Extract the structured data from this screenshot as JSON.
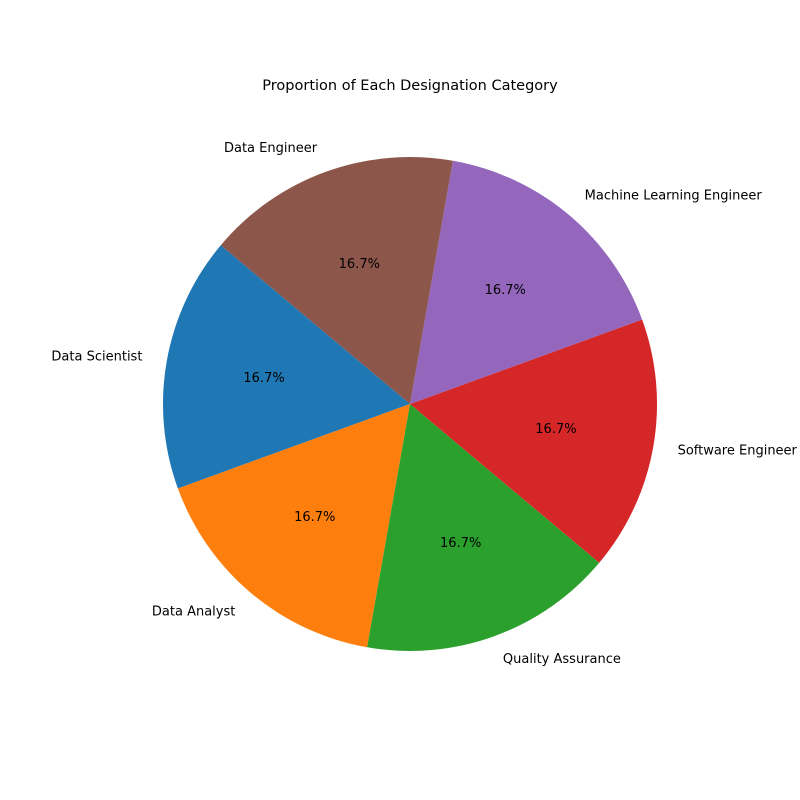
{
  "chart_data": {
    "type": "pie",
    "title": "Proportion of Each Designation Category",
    "categories": [
      "Data Scientist",
      "Data Analyst",
      "Quality Assurance",
      "Software Engineer",
      "Machine Learning Engineer",
      "Data Engineer"
    ],
    "values": [
      1,
      1,
      1,
      1,
      1,
      1
    ],
    "percent_labels": [
      "16.7%",
      "16.7%",
      "16.7%",
      "16.7%",
      "16.7%",
      "16.7%"
    ],
    "colors": [
      "#1f77b4",
      "#ff7f0e",
      "#2ca02c",
      "#d62728",
      "#9467bd",
      "#8c564b"
    ],
    "start_angle_deg": 140,
    "direction": "counterclockwise",
    "legend": "none"
  }
}
